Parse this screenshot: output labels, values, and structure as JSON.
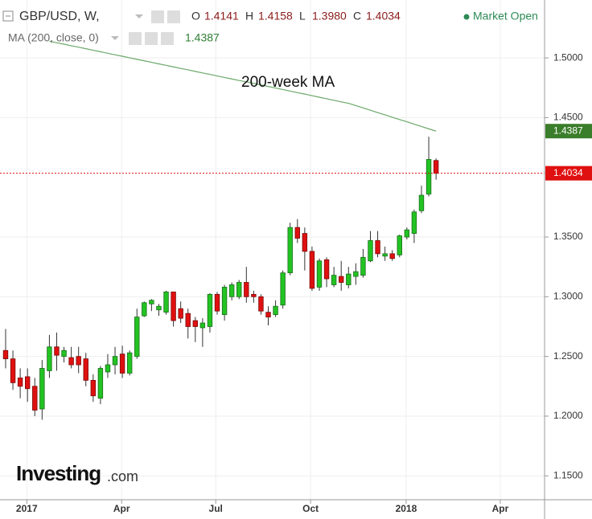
{
  "chart_data": {
    "type": "candlestick",
    "title": "GBP/USD, W,",
    "status": "Market Open",
    "header": [
      {
        "label": "O",
        "value": "1.4141"
      },
      {
        "label": "H",
        "value": "1.4158"
      },
      {
        "label": "L",
        "value": "1.3980"
      },
      {
        "label": "C",
        "value": "1.4034"
      }
    ],
    "annotation": "200-week MA",
    "watermark": [
      "Investing",
      ".com"
    ],
    "up_color": "#22c322",
    "down_color": "#e01010",
    "open": [
      1.255,
      1.248,
      1.232,
      1.233,
      1.225,
      1.206,
      1.238,
      1.258,
      1.25,
      1.249,
      1.25,
      1.248,
      1.23,
      1.215,
      1.237,
      1.243,
      1.252,
      1.236,
      1.25,
      1.284,
      1.294,
      1.289,
      1.287,
      1.304,
      1.29,
      1.286,
      1.28,
      1.274,
      1.275,
      1.302,
      1.285,
      1.3,
      1.3,
      1.312,
      1.302,
      1.3,
      1.287,
      1.285,
      1.293,
      1.32,
      1.358,
      1.353,
      1.338,
      1.308,
      1.331,
      1.31,
      1.317,
      1.31,
      1.317,
      1.318,
      1.33,
      1.347,
      1.334,
      1.336,
      1.335,
      1.35,
      1.353,
      1.372,
      1.386,
      1.4141
    ],
    "high": [
      1.273,
      1.255,
      1.24,
      1.24,
      1.232,
      1.247,
      1.268,
      1.27,
      1.258,
      1.258,
      1.258,
      1.253,
      1.235,
      1.242,
      1.252,
      1.258,
      1.259,
      1.255,
      1.29,
      1.296,
      1.298,
      1.294,
      1.305,
      1.304,
      1.296,
      1.29,
      1.283,
      1.282,
      1.303,
      1.304,
      1.31,
      1.312,
      1.314,
      1.325,
      1.305,
      1.302,
      1.292,
      1.297,
      1.322,
      1.362,
      1.365,
      1.358,
      1.342,
      1.332,
      1.333,
      1.325,
      1.33,
      1.325,
      1.328,
      1.34,
      1.355,
      1.355,
      1.342,
      1.339,
      1.352,
      1.358,
      1.373,
      1.393,
      1.434,
      1.4158
    ],
    "low": [
      1.24,
      1.222,
      1.215,
      1.212,
      1.2,
      1.197,
      1.232,
      1.238,
      1.245,
      1.24,
      1.236,
      1.225,
      1.212,
      1.21,
      1.232,
      1.235,
      1.232,
      1.234,
      1.248,
      1.283,
      1.288,
      1.284,
      1.285,
      1.275,
      1.278,
      1.265,
      1.262,
      1.258,
      1.27,
      1.285,
      1.28,
      1.297,
      1.298,
      1.295,
      1.295,
      1.285,
      1.276,
      1.283,
      1.29,
      1.318,
      1.345,
      1.322,
      1.305,
      1.305,
      1.308,
      1.308,
      1.305,
      1.307,
      1.31,
      1.316,
      1.329,
      1.333,
      1.33,
      1.33,
      1.333,
      1.348,
      1.345,
      1.37,
      1.384,
      1.398
    ],
    "close": [
      1.248,
      1.228,
      1.225,
      1.223,
      1.205,
      1.24,
      1.258,
      1.251,
      1.255,
      1.243,
      1.243,
      1.23,
      1.217,
      1.24,
      1.243,
      1.25,
      1.236,
      1.253,
      1.283,
      1.295,
      1.297,
      1.292,
      1.304,
      1.28,
      1.282,
      1.275,
      1.275,
      1.278,
      1.302,
      1.288,
      1.308,
      1.31,
      1.312,
      1.3,
      1.3,
      1.288,
      1.283,
      1.292,
      1.32,
      1.358,
      1.349,
      1.338,
      1.307,
      1.33,
      1.315,
      1.318,
      1.312,
      1.319,
      1.321,
      1.333,
      1.347,
      1.336,
      1.336,
      1.332,
      1.351,
      1.356,
      1.371,
      1.385,
      1.415,
      1.4034
    ],
    "ma": {
      "name": "MA (200, close, 0)",
      "color": "#6aa86a",
      "values": [
        null,
        null,
        null,
        null,
        null,
        null,
        1.514,
        1.5127,
        1.5115,
        1.5102,
        1.509,
        1.5077,
        1.5064,
        1.5052,
        1.5039,
        1.5026,
        1.5014,
        1.5001,
        1.4988,
        1.4976,
        1.4963,
        1.495,
        1.4938,
        1.4925,
        1.4912,
        1.49,
        1.4887,
        1.4874,
        1.4862,
        1.4849,
        1.4836,
        1.4824,
        1.4811,
        1.48,
        1.4787,
        1.4774,
        1.4761,
        1.4748,
        1.4735,
        1.4722,
        1.4709,
        1.4697,
        1.4684,
        1.4671,
        1.4658,
        1.4645,
        1.4632,
        1.462,
        1.4601,
        1.4581,
        1.4562,
        1.4542,
        1.4523,
        1.4503,
        1.4484,
        1.4465,
        1.4445,
        1.4426,
        1.4406,
        1.4387
      ]
    },
    "xlim": [
      -0.77,
      73.87
    ],
    "xticks": [
      {
        "value": 2.9,
        "label": "2017"
      },
      {
        "value": 15.9,
        "label": "Apr"
      },
      {
        "value": 28.8,
        "label": "Jul"
      },
      {
        "value": 41.8,
        "label": "Oct"
      },
      {
        "value": 54.9,
        "label": "2018"
      },
      {
        "value": 67.8,
        "label": "Apr"
      }
    ],
    "ylim": [
      1.13,
      1.5485
    ],
    "yticks": [
      {
        "value": 1.15,
        "label": "1.1500"
      },
      {
        "value": 1.2,
        "label": "1.2000"
      },
      {
        "value": 1.25,
        "label": "1.2500"
      },
      {
        "value": 1.3,
        "label": "1.3000"
      },
      {
        "value": 1.35,
        "label": "1.3500"
      },
      {
        "value": 1.45,
        "label": "1.4500"
      },
      {
        "value": 1.5,
        "label": "1.5000"
      }
    ],
    "grid": true
  }
}
